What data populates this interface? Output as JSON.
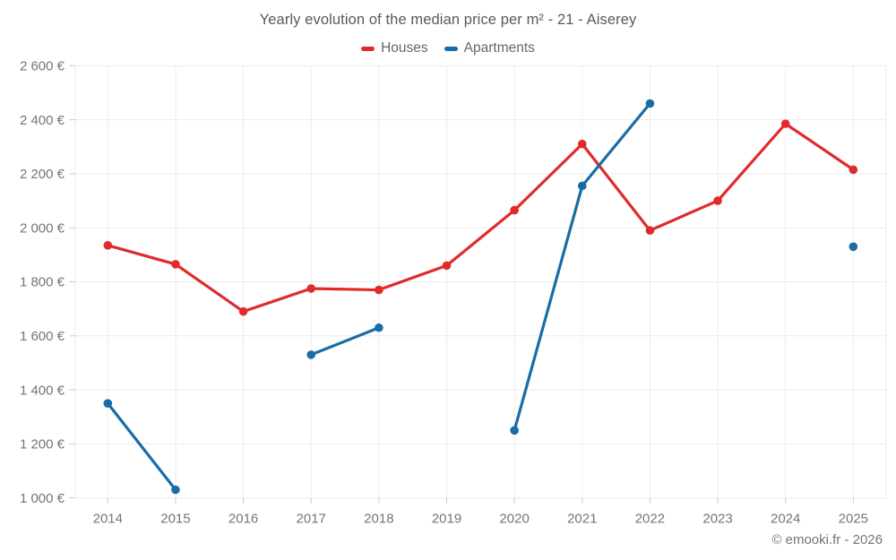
{
  "chart": {
    "title": "Yearly evolution of the median price per m² - 21 - Aiserey",
    "footer": "© emooki.fr - 2026"
  },
  "chart_data": {
    "type": "line",
    "title": "Yearly evolution of the median price per m² - 21 - Aiserey",
    "xlabel": "",
    "ylabel": "",
    "x": [
      "2014",
      "2015",
      "2016",
      "2017",
      "2018",
      "2019",
      "2020",
      "2021",
      "2022",
      "2023",
      "2024",
      "2025"
    ],
    "series": [
      {
        "name": "Houses",
        "color": "#e02a2c",
        "values": [
          1935,
          1865,
          1690,
          1775,
          1770,
          1860,
          2065,
          2310,
          1990,
          2100,
          2385,
          2215
        ]
      },
      {
        "name": "Apartments",
        "color": "#1a6ca6",
        "values": [
          1350,
          1030,
          null,
          1530,
          1630,
          null,
          1250,
          2155,
          2460,
          null,
          null,
          1930
        ]
      }
    ],
    "ylim": [
      1000,
      2600
    ],
    "y_tick_step": 200,
    "y_tick_labels": [
      "1 000 €",
      "1 200 €",
      "1 400 €",
      "1 600 €",
      "1 800 €",
      "2 000 €",
      "2 200 €",
      "2 400 €",
      "2 600 €"
    ],
    "grid": true,
    "legend_position": "top",
    "gaps_note": "null = no data point that year"
  }
}
